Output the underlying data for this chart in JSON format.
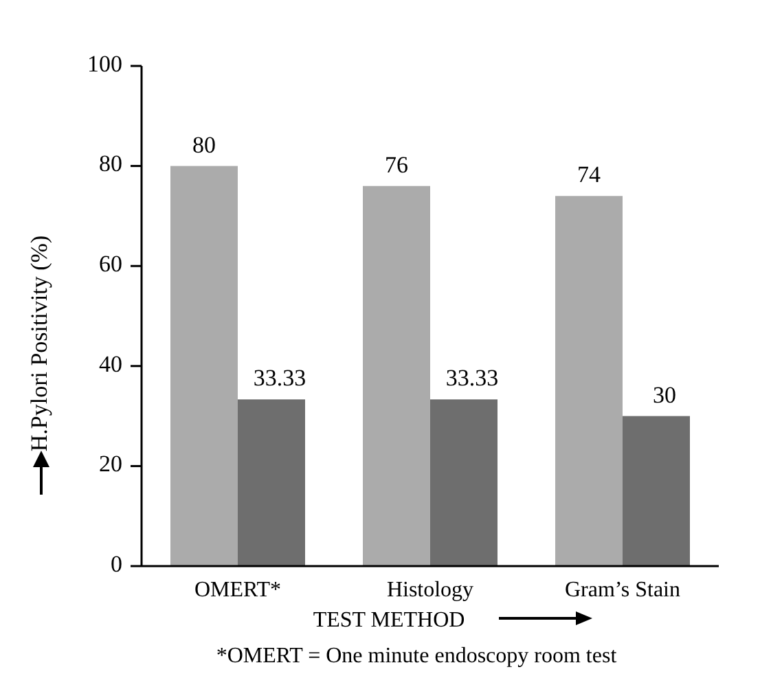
{
  "chart_data": {
    "type": "bar",
    "ylabel": "H.Pylori Positivity (%)",
    "xlabel": "TEST METHOD",
    "categories": [
      "OMERT*",
      "Histology",
      "Gram’s Stain"
    ],
    "series": [
      {
        "color": "#ababab",
        "values": [
          80,
          76,
          74
        ]
      },
      {
        "color": "#6e6e6e",
        "values": [
          33.33,
          33.33,
          30
        ]
      }
    ],
    "ylim": [
      0,
      100
    ],
    "yticks": [
      0,
      20,
      40,
      60,
      80,
      100
    ],
    "data_labels": true,
    "grid": false,
    "annotations": [
      "*OMERT = One minute endoscopy room test"
    ]
  }
}
